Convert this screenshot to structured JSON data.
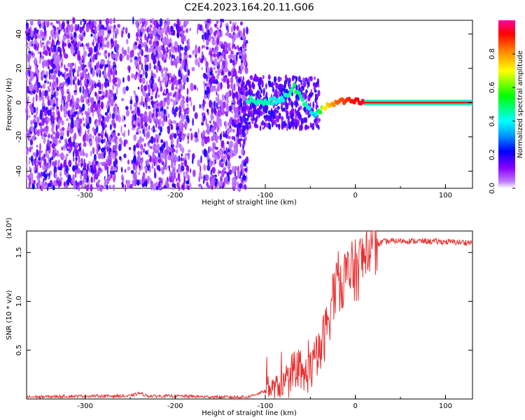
{
  "title": "C2E4.2023.164.20.11.G06",
  "chart_data": [
    {
      "type": "heatmap",
      "xlabel": "Height of straight line (km)",
      "ylabel": "Frequency (Hz)",
      "xlim": [
        -365,
        130
      ],
      "ylim": [
        -50,
        48
      ],
      "xticks": [
        -300,
        -200,
        -100,
        0,
        100
      ],
      "yticks": [
        -40,
        -20,
        0,
        20,
        40
      ],
      "colorbar": {
        "label": "Normalized spectral amplitude",
        "range": [
          0,
          1
        ],
        "ticks": [
          "0.0",
          "0.2",
          "0.4",
          "0.6",
          "0.8"
        ],
        "tick_values": [
          0.0,
          0.2,
          0.4,
          0.6,
          0.8
        ]
      },
      "signal_track": [
        {
          "x": -120,
          "y": 2,
          "amp": 0.45
        },
        {
          "x": -100,
          "y": 0,
          "amp": 0.45
        },
        {
          "x": -80,
          "y": 2,
          "amp": 0.4
        },
        {
          "x": -68,
          "y": 9,
          "amp": 0.5
        },
        {
          "x": -55,
          "y": -2,
          "amp": 0.45
        },
        {
          "x": -45,
          "y": -7,
          "amp": 0.35
        },
        {
          "x": -35,
          "y": -3,
          "amp": 0.7
        },
        {
          "x": -20,
          "y": 0,
          "amp": 0.85
        },
        {
          "x": -5,
          "y": 1,
          "amp": 0.9
        },
        {
          "x": 10,
          "y": 0,
          "amp": 0.95
        },
        {
          "x": 130,
          "y": 0,
          "amp": 0.95
        }
      ]
    },
    {
      "type": "line",
      "xlabel": "Height of straight line (km)",
      "ylabel": "SNR (10 * v/v)",
      "y_multiplier": "(x10⁴)",
      "xlim": [
        -365,
        130
      ],
      "ylim": [
        0,
        1.72
      ],
      "xticks": [
        -300,
        -200,
        -100,
        0,
        100
      ],
      "yticks": [
        0.5,
        1.0,
        1.5
      ],
      "ytick_labels": [
        "0.5",
        "1.0",
        "1.5"
      ],
      "series": [
        {
          "color": "#e83030",
          "x": [
            -365,
            -300,
            -250,
            -240,
            -230,
            -200,
            -150,
            -120,
            -100,
            -80,
            -60,
            -50,
            -40,
            -30,
            -25,
            -20,
            -10,
            0,
            10,
            20,
            30,
            50,
            100,
            130
          ],
          "y": [
            0.02,
            0.03,
            0.03,
            0.06,
            0.03,
            0.03,
            0.02,
            0.02,
            0.08,
            0.15,
            0.2,
            0.3,
            0.45,
            0.8,
            1.05,
            1.2,
            1.25,
            1.3,
            1.45,
            1.55,
            1.61,
            1.62,
            1.61,
            1.6
          ]
        }
      ]
    }
  ]
}
